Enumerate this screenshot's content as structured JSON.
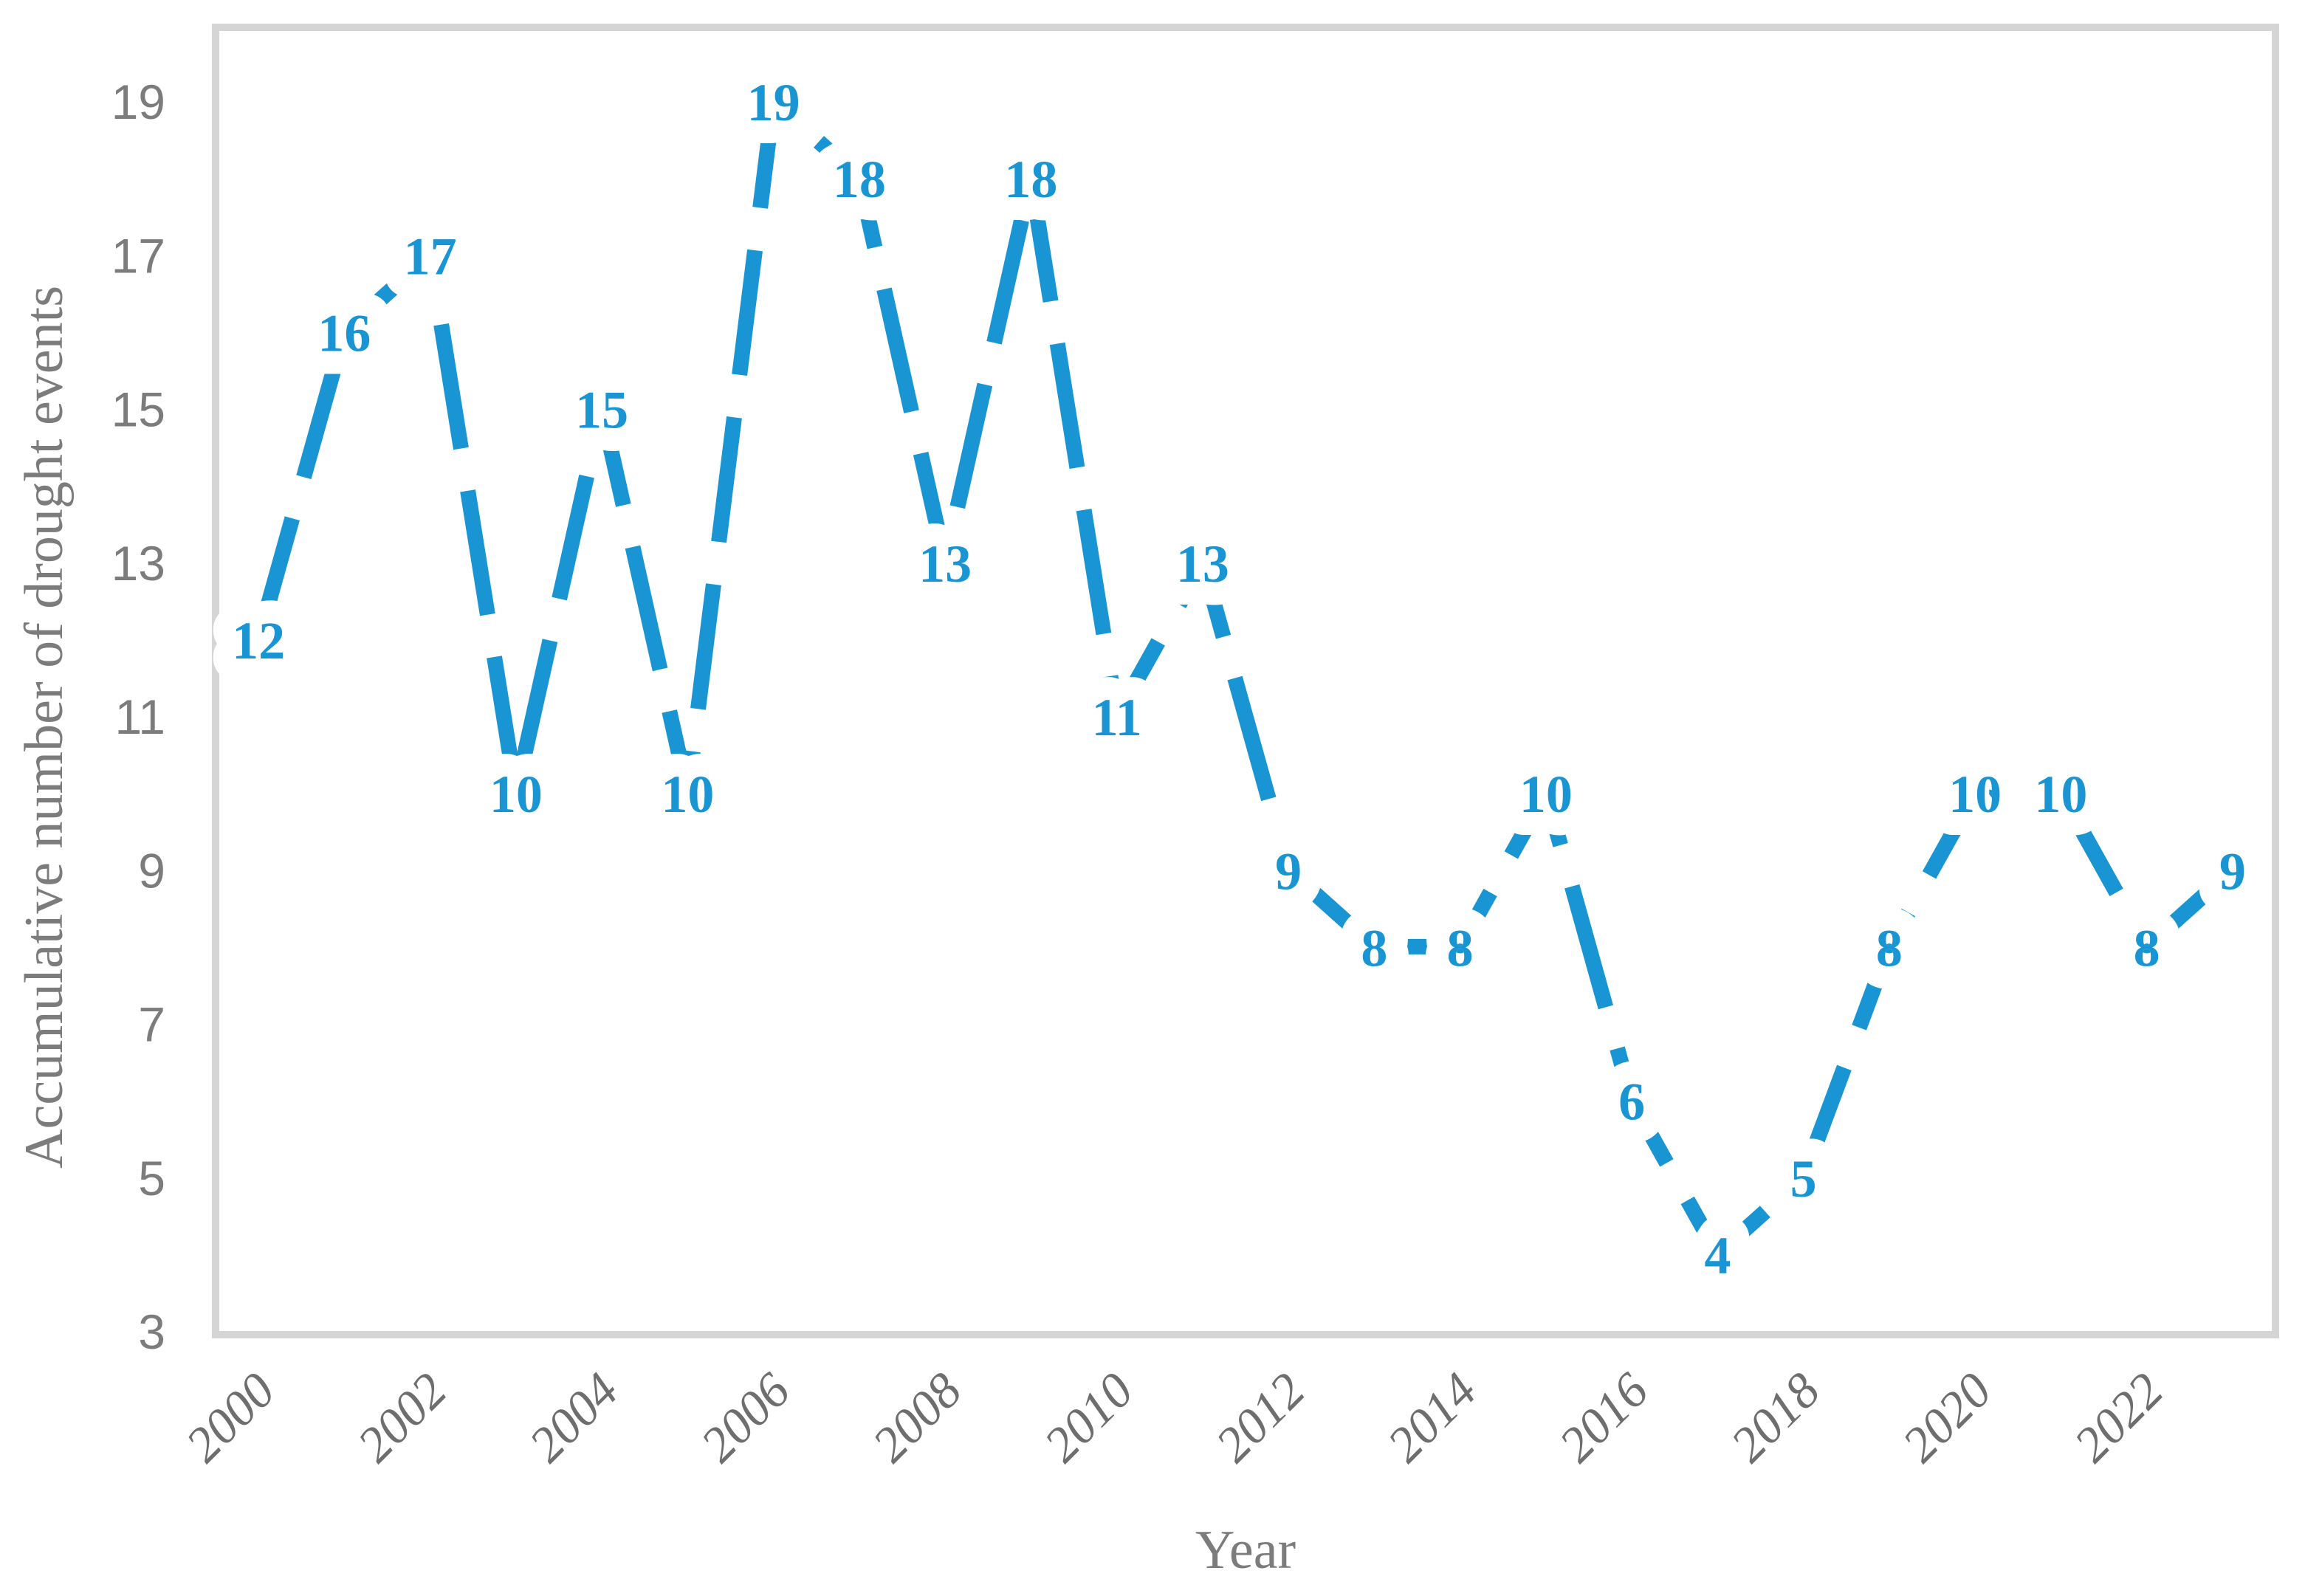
{
  "chart_data": {
    "type": "line",
    "title": "",
    "xlabel": "Year",
    "ylabel": "Accumulative number of drought events",
    "categories": [
      2000,
      2001,
      2002,
      2003,
      2004,
      2005,
      2006,
      2007,
      2008,
      2009,
      2010,
      2011,
      2012,
      2013,
      2014,
      2015,
      2016,
      2017,
      2018,
      2019,
      2020,
      2021,
      2022,
      2023
    ],
    "values": [
      12,
      16,
      17,
      10,
      15,
      10,
      19,
      18,
      13,
      18,
      11,
      13,
      9,
      8,
      8,
      10,
      6,
      4,
      5,
      8,
      10,
      10,
      8,
      9
    ],
    "x_tick_labels": [
      "2000",
      "2002",
      "2004",
      "2006",
      "2008",
      "2010",
      "2012",
      "2014",
      "2016",
      "2018",
      "2020",
      "2022"
    ],
    "y_tick_labels": [
      "19",
      "17",
      "15",
      "13",
      "11",
      "9",
      "7",
      "5",
      "3"
    ],
    "y_ticks": [
      19,
      17,
      15,
      13,
      11,
      9,
      7,
      5,
      3
    ],
    "ylim": [
      3,
      20
    ],
    "grid": false,
    "legend": "none",
    "marker": "none",
    "line_style": "dashed",
    "data_label_position": "center",
    "x_tick_rotation_deg": -45,
    "colors": {
      "series": "#1A95D3",
      "data_labels": "#1A95D3",
      "label_halo": "#FFFFFF",
      "y_tick_text": "#7C7C7C",
      "x_tick_text": "#6E6E6E",
      "axis_titles": "#7C7C7C",
      "plot_border": "#D5D5D5",
      "background": "#FFFFFF"
    }
  }
}
